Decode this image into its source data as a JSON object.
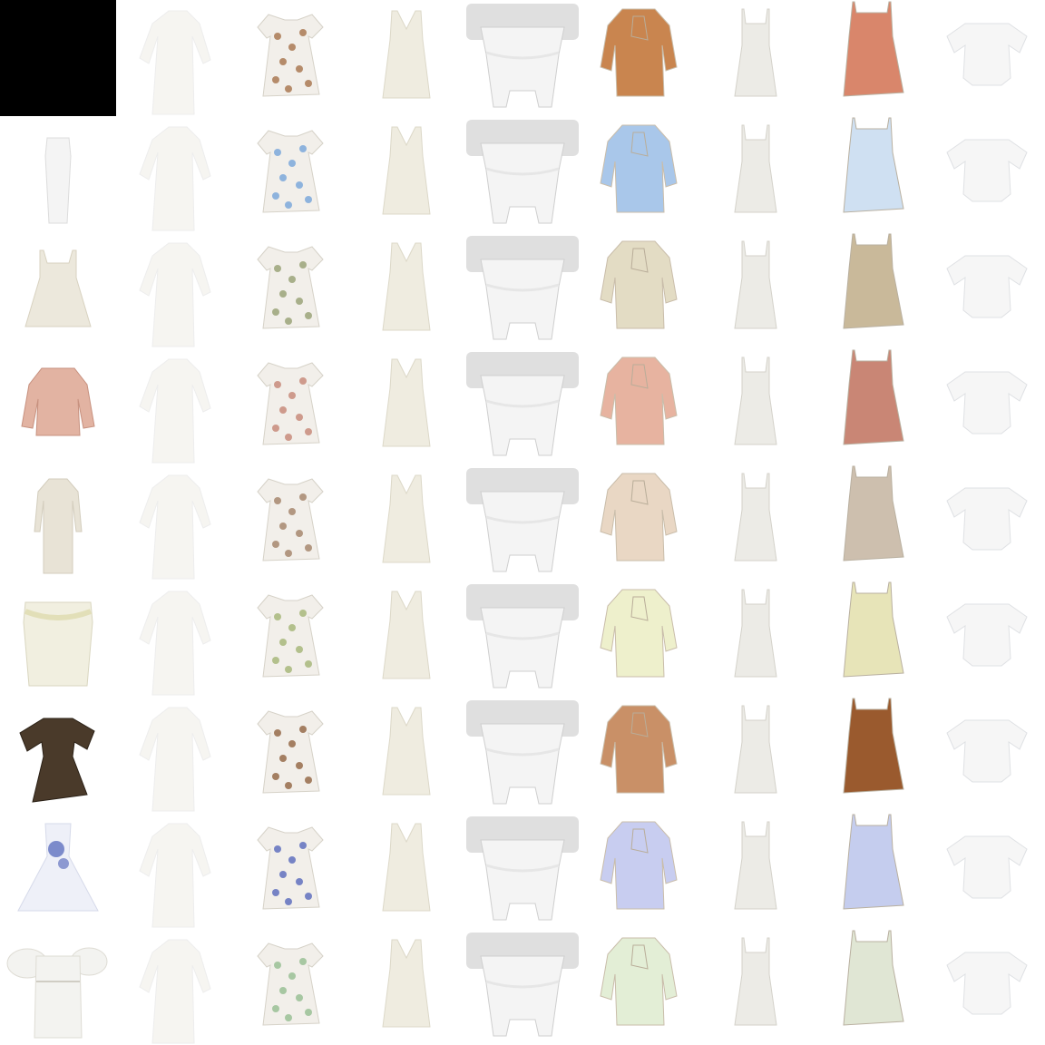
{
  "grid": {
    "rows": 9,
    "cols": 9,
    "background": "#ffffff",
    "column_styles": [
      "source",
      "long-sleeve-gown",
      "floral-puff-dress",
      "v-neck-long-dress",
      "corset-mannequin",
      "bow-blouse-jacket",
      "slip-midi-dress",
      "strap-mini-dress",
      "off-shoulder-top"
    ],
    "source_column": [
      {
        "style": "blank",
        "color": "#000000"
      },
      {
        "style": "column-dress",
        "color": "#f4f4f4"
      },
      {
        "style": "sundress",
        "color": "#ece8dc"
      },
      {
        "style": "peplum-jacket",
        "color": "#e2b3a2"
      },
      {
        "style": "long-sleeve-maxi",
        "color": "#e8e3d6"
      },
      {
        "style": "draped-bodice-dress",
        "color": "#f1efe0"
      },
      {
        "style": "ruffle-sleeve-dress",
        "color": "#4a3a2a"
      },
      {
        "style": "ballgown",
        "color": "#eef0f8"
      },
      {
        "style": "puff-sleeve-mini",
        "color": "#f3f3f0"
      }
    ],
    "row_tints": [
      {
        "garment": "#c9854f",
        "floral": "#a06a3f",
        "strap": "#d9866b"
      },
      {
        "garment": "#a9c7ea",
        "floral": "#6c9fd8",
        "strap": "#cfe0f2"
      },
      {
        "garment": "#e3dcc4",
        "floral": "#8f9a6a",
        "strap": "#c9b99a"
      },
      {
        "garment": "#e7b3a0",
        "floral": "#c27d6c",
        "strap": "#c98675"
      },
      {
        "garment": "#e9d7c4",
        "floral": "#9c7a5e",
        "strap": "#cdbfae"
      },
      {
        "garment": "#eef0cc",
        "floral": "#9db06c",
        "strap": "#e7e4b8"
      },
      {
        "garment": "#c99067",
        "floral": "#8a5a34",
        "strap": "#9a5a2e"
      },
      {
        "garment": "#c8cdf0",
        "floral": "#4c5fb8",
        "strap": "#c5cdee"
      },
      {
        "garment": "#e3eed6",
        "floral": "#8db98a",
        "strap": "#e0e6d4"
      }
    ]
  }
}
